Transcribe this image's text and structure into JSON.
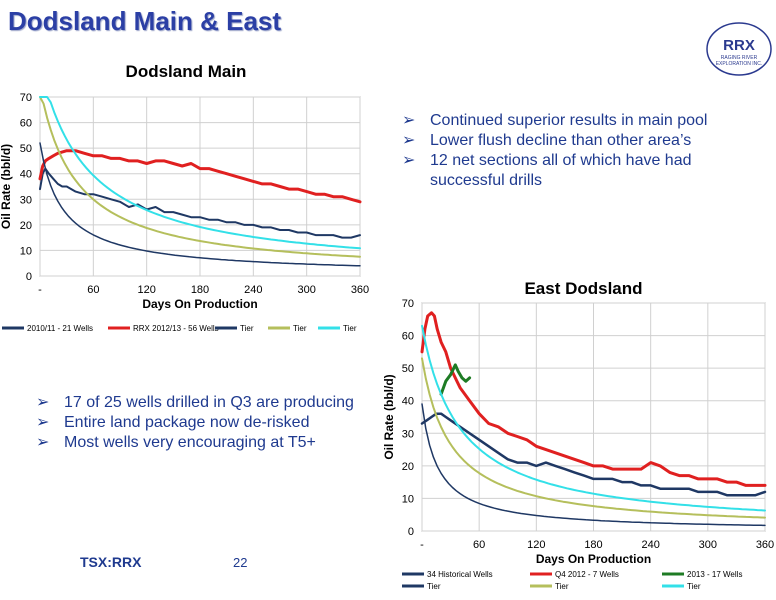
{
  "slide": {
    "title": "Dodsland Main & East",
    "footer_ticker": "TSX:RRX",
    "footer_page": "22"
  },
  "logo": {
    "text": "RRX",
    "tagline_1": "RAGING RIVER",
    "tagline_2": "EXPLORATION INC.",
    "color": "#2B3A8F"
  },
  "bullets_top": [
    "Continued superior results in main pool",
    "Lower flush decline than other area’s",
    "12 net sections all of which have had successful drills"
  ],
  "bullets_bottom": [
    "17 of 25 wells drilled in Q3 are producing",
    "Entire land package now de-risked",
    "Most wells very encouraging at T5+"
  ],
  "chart_data": [
    {
      "type": "line",
      "title": "Dodsland Main",
      "xlabel": "Days On Production",
      "ylabel": "Oil Rate (bbl/d)",
      "xlim": [
        0,
        360
      ],
      "ylim": [
        0,
        70
      ],
      "xticks": [
        0,
        60,
        120,
        180,
        240,
        300,
        360
      ],
      "xtick_labels": [
        "-",
        "60",
        "120",
        "180",
        "240",
        "300",
        "360"
      ],
      "yticks": [
        0,
        10,
        20,
        30,
        40,
        50,
        60,
        70
      ],
      "grid": true,
      "legend_position": "bottom",
      "series": [
        {
          "name": "2010/11 - 21 Wells",
          "color": "#1F3864",
          "width": 2,
          "x": [
            0,
            3,
            6,
            10,
            15,
            20,
            25,
            30,
            40,
            50,
            60,
            70,
            80,
            90,
            100,
            110,
            120,
            130,
            140,
            150,
            160,
            170,
            180,
            190,
            200,
            210,
            220,
            230,
            240,
            250,
            260,
            270,
            280,
            290,
            300,
            310,
            320,
            330,
            340,
            350,
            360
          ],
          "y": [
            34,
            40,
            42,
            40,
            38,
            36,
            35,
            35,
            33,
            32,
            32,
            31,
            30,
            29,
            27,
            28,
            26,
            27,
            25,
            25,
            24,
            23,
            23,
            22,
            22,
            21,
            21,
            20,
            20,
            19,
            19,
            18,
            18,
            17,
            17,
            16,
            16,
            16,
            15,
            15,
            16
          ]
        },
        {
          "name": "RRX 2012/13 - 56 Wells",
          "color": "#E02020",
          "width": 3,
          "x": [
            0,
            3,
            6,
            10,
            15,
            20,
            30,
            40,
            50,
            60,
            70,
            80,
            90,
            100,
            110,
            120,
            130,
            140,
            150,
            160,
            170,
            180,
            190,
            200,
            210,
            220,
            230,
            240,
            250,
            260,
            270,
            280,
            290,
            300,
            310,
            320,
            330,
            340,
            350,
            360
          ],
          "y": [
            38,
            43,
            45,
            46,
            47,
            48,
            49,
            49,
            48,
            47,
            47,
            46,
            46,
            45,
            45,
            44,
            45,
            45,
            44,
            43,
            44,
            42,
            42,
            41,
            40,
            39,
            38,
            37,
            36,
            36,
            35,
            34,
            34,
            33,
            32,
            32,
            31,
            31,
            30,
            29
          ]
        },
        {
          "name": "Tier",
          "color": "#1F3864",
          "width": 1.5,
          "decline": {
            "qi": 52,
            "di": 0.04,
            "b": 1.1
          }
        },
        {
          "name": "Tier",
          "color": "#B5BF5C",
          "width": 2,
          "decline": {
            "qi": 74,
            "di": 0.0245,
            "b": 1.0
          }
        },
        {
          "name": "Tier",
          "color": "#33E0E8",
          "width": 2,
          "decline": {
            "qi": 83,
            "di": 0.0185,
            "b": 1.0
          }
        }
      ]
    },
    {
      "type": "line",
      "title": "East Dodsland",
      "xlabel": "Days On Production",
      "ylabel": "Oil Rate (bbl/d)",
      "xlim": [
        0,
        360
      ],
      "ylim": [
        0,
        70
      ],
      "xticks": [
        0,
        60,
        120,
        180,
        240,
        300,
        360
      ],
      "xtick_labels": [
        "-",
        "60",
        "120",
        "180",
        "240",
        "300",
        "360"
      ],
      "yticks": [
        0,
        10,
        20,
        30,
        40,
        50,
        60,
        70
      ],
      "grid": true,
      "legend_position": "bottom",
      "series": [
        {
          "name": "34 Historical Wells",
          "color": "#1F3864",
          "width": 2.5,
          "x": [
            0,
            5,
            10,
            15,
            20,
            25,
            30,
            40,
            50,
            60,
            70,
            80,
            90,
            100,
            110,
            120,
            130,
            140,
            150,
            160,
            170,
            180,
            190,
            200,
            210,
            220,
            230,
            240,
            250,
            260,
            270,
            280,
            290,
            300,
            310,
            320,
            330,
            340,
            350,
            360
          ],
          "y": [
            33,
            34,
            35,
            36,
            36,
            35,
            34,
            32,
            30,
            28,
            26,
            24,
            22,
            21,
            21,
            20,
            21,
            20,
            19,
            18,
            17,
            16,
            16,
            16,
            15,
            15,
            14,
            14,
            13,
            13,
            13,
            13,
            12,
            12,
            12,
            11,
            11,
            11,
            11,
            12
          ]
        },
        {
          "name": "Q4 2012 - 7 Wells",
          "color": "#E02020",
          "width": 3,
          "x": [
            0,
            3,
            6,
            10,
            13,
            16,
            20,
            25,
            30,
            35,
            40,
            50,
            60,
            70,
            80,
            90,
            100,
            110,
            120,
            130,
            140,
            150,
            160,
            170,
            180,
            190,
            200,
            210,
            220,
            230,
            240,
            250,
            260,
            270,
            280,
            290,
            300,
            310,
            320,
            330,
            340,
            350,
            360
          ],
          "y": [
            55,
            62,
            66,
            67,
            66,
            62,
            58,
            55,
            50,
            47,
            44,
            40,
            36,
            33,
            32,
            30,
            29,
            28,
            26,
            25,
            24,
            23,
            22,
            21,
            20,
            20,
            19,
            19,
            19,
            19,
            21,
            20,
            18,
            17,
            17,
            16,
            16,
            16,
            15,
            15,
            14,
            14,
            14
          ]
        },
        {
          "name": "2013 - 17 Wells",
          "color": "#1E7B24",
          "width": 3,
          "x": [
            20,
            25,
            30,
            35,
            38,
            42,
            46,
            50
          ],
          "y": [
            42,
            46,
            48,
            51,
            49,
            47,
            46,
            47
          ]
        },
        {
          "name": "Tier",
          "color": "#1F3864",
          "width": 1.5,
          "decline": {
            "qi": 39,
            "di": 0.06,
            "b": 1.0
          }
        },
        {
          "name": "Tier",
          "color": "#B5BF5C",
          "width": 2,
          "decline": {
            "qi": 53,
            "di": 0.033,
            "b": 1.0
          }
        },
        {
          "name": "Tier",
          "color": "#33E0E8",
          "width": 2,
          "decline": {
            "qi": 63,
            "di": 0.025,
            "b": 1.0
          }
        }
      ]
    }
  ]
}
